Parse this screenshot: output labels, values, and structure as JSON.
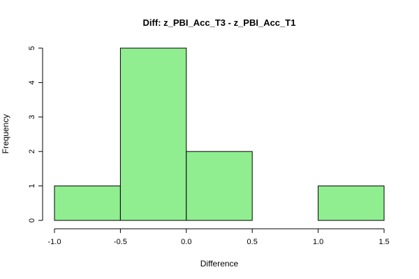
{
  "chart_data": {
    "type": "bar",
    "title": "Diff: z_PBI_Acc_T3 - z_PBI_Acc_T1",
    "xlabel": "Difference",
    "ylabel": "Frequency",
    "bins": [
      {
        "from": -1.0,
        "to": -0.5,
        "count": 1
      },
      {
        "from": -0.5,
        "to": 0.0,
        "count": 5
      },
      {
        "from": 0.0,
        "to": 0.5,
        "count": 2
      },
      {
        "from": 0.5,
        "to": 1.0,
        "count": 0
      },
      {
        "from": 1.0,
        "to": 1.5,
        "count": 1
      }
    ],
    "xlim": [
      -1.0,
      1.5
    ],
    "ylim": [
      0,
      5
    ],
    "x_ticks": [
      -1.0,
      -0.5,
      0.0,
      0.5,
      1.0,
      1.5
    ],
    "x_tick_labels": [
      "-1.0",
      "-0.5",
      "0.0",
      "0.5",
      "1.0",
      "1.5"
    ],
    "y_ticks": [
      0,
      1,
      2,
      3,
      4,
      5
    ],
    "y_tick_labels": [
      "0",
      "1",
      "2",
      "3",
      "4",
      "5"
    ],
    "bar_color": "#90ee90",
    "grid": false,
    "legend": "none"
  }
}
